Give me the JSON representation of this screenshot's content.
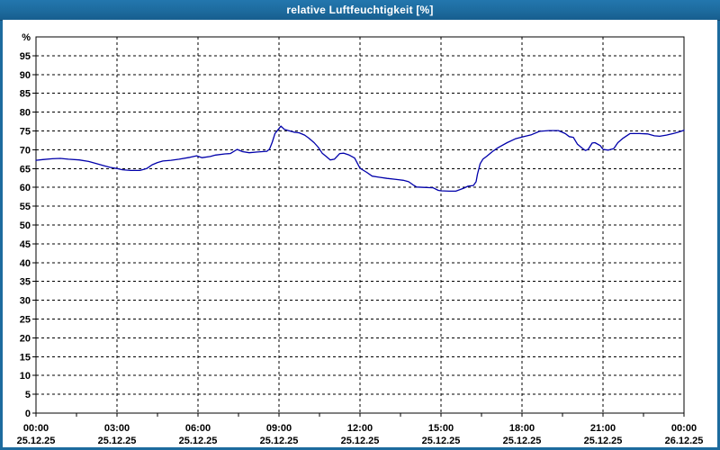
{
  "window": {
    "title": "relative Luftfeuchtigkeit [%]"
  },
  "colors": {
    "titlebar": "#1d6b9e",
    "window_border": "#1d6b9e",
    "line": "#0000aa",
    "grid": "#000000",
    "axis": "#000000",
    "background": "#ffffff",
    "title_text": "#ffffff",
    "label_text": "#000000"
  },
  "chart_data": {
    "type": "line",
    "title": "relative Luftfeuchtigkeit [%]",
    "ylabel": "%",
    "y_unit_label": "%",
    "ylim": [
      0,
      100
    ],
    "y_ticks": [
      0,
      5,
      10,
      15,
      20,
      25,
      30,
      35,
      40,
      45,
      50,
      55,
      60,
      65,
      70,
      75,
      80,
      85,
      90,
      95
    ],
    "xlim_hours": [
      0,
      24
    ],
    "x_major_step_hours": 3,
    "x_minor_step_hours": 1.5,
    "x_ticks": [
      {
        "time": "00:00",
        "date": "25.12.25",
        "hour": 0
      },
      {
        "time": "03:00",
        "date": "25.12.25",
        "hour": 3
      },
      {
        "time": "06:00",
        "date": "25.12.25",
        "hour": 6
      },
      {
        "time": "09:00",
        "date": "25.12.25",
        "hour": 9
      },
      {
        "time": "12:00",
        "date": "25.12.25",
        "hour": 12
      },
      {
        "time": "15:00",
        "date": "25.12.25",
        "hour": 15
      },
      {
        "time": "18:00",
        "date": "25.12.25",
        "hour": 18
      },
      {
        "time": "21:00",
        "date": "25.12.25",
        "hour": 21
      },
      {
        "time": "00:00",
        "date": "26.12.25",
        "hour": 24
      }
    ],
    "grid": "dashed",
    "legend": "none",
    "series": [
      {
        "name": "relative Luftfeuchtigkeit",
        "color": "#0000aa",
        "points": [
          [
            0.0,
            67.2
          ],
          [
            0.25,
            67.4
          ],
          [
            0.6,
            67.6
          ],
          [
            0.9,
            67.7
          ],
          [
            1.2,
            67.5
          ],
          [
            1.6,
            67.3
          ],
          [
            1.95,
            66.9
          ],
          [
            2.25,
            66.3
          ],
          [
            2.5,
            65.8
          ],
          [
            2.75,
            65.3
          ],
          [
            3.0,
            65.0
          ],
          [
            3.2,
            64.7
          ],
          [
            3.5,
            64.5
          ],
          [
            3.85,
            64.5
          ],
          [
            4.0,
            64.8
          ],
          [
            4.1,
            65.0
          ],
          [
            4.3,
            66.0
          ],
          [
            4.5,
            66.6
          ],
          [
            4.7,
            67.0
          ],
          [
            5.0,
            67.2
          ],
          [
            5.3,
            67.5
          ],
          [
            5.7,
            68.0
          ],
          [
            5.95,
            68.4
          ],
          [
            6.15,
            67.9
          ],
          [
            6.45,
            68.2
          ],
          [
            6.65,
            68.6
          ],
          [
            7.0,
            68.9
          ],
          [
            7.2,
            69.0
          ],
          [
            7.45,
            70.1
          ],
          [
            7.65,
            69.5
          ],
          [
            7.9,
            69.2
          ],
          [
            8.2,
            69.4
          ],
          [
            8.55,
            69.6
          ],
          [
            8.65,
            70.2
          ],
          [
            8.75,
            72.0
          ],
          [
            8.85,
            74.3
          ],
          [
            8.95,
            75.2
          ],
          [
            9.07,
            76.3
          ],
          [
            9.2,
            75.4
          ],
          [
            9.35,
            75.1
          ],
          [
            9.55,
            74.7
          ],
          [
            9.75,
            74.5
          ],
          [
            9.95,
            73.9
          ],
          [
            10.1,
            73.1
          ],
          [
            10.3,
            71.9
          ],
          [
            10.45,
            70.7
          ],
          [
            10.6,
            69.1
          ],
          [
            10.75,
            68.2
          ],
          [
            10.9,
            67.3
          ],
          [
            11.05,
            67.5
          ],
          [
            11.25,
            69.0
          ],
          [
            11.4,
            69.1
          ],
          [
            11.6,
            68.6
          ],
          [
            11.8,
            67.8
          ],
          [
            12.0,
            65.1
          ],
          [
            12.25,
            64.0
          ],
          [
            12.45,
            63.0
          ],
          [
            12.7,
            62.7
          ],
          [
            13.0,
            62.4
          ],
          [
            13.35,
            62.1
          ],
          [
            13.6,
            61.9
          ],
          [
            13.8,
            61.5
          ],
          [
            14.0,
            60.5
          ],
          [
            14.1,
            60.1
          ],
          [
            14.35,
            60.0
          ],
          [
            14.7,
            59.9
          ],
          [
            14.9,
            59.2
          ],
          [
            15.0,
            59.1
          ],
          [
            15.3,
            59.0
          ],
          [
            15.55,
            59.0
          ],
          [
            15.85,
            59.8
          ],
          [
            16.0,
            60.3
          ],
          [
            16.2,
            60.5
          ],
          [
            16.3,
            61.5
          ],
          [
            16.35,
            63.5
          ],
          [
            16.45,
            66.3
          ],
          [
            16.55,
            67.5
          ],
          [
            16.7,
            68.3
          ],
          [
            16.9,
            69.5
          ],
          [
            17.1,
            70.5
          ],
          [
            17.45,
            71.9
          ],
          [
            17.75,
            72.9
          ],
          [
            18.0,
            73.4
          ],
          [
            18.35,
            74.0
          ],
          [
            18.65,
            74.9
          ],
          [
            19.0,
            75.1
          ],
          [
            19.35,
            75.1
          ],
          [
            19.6,
            74.3
          ],
          [
            19.75,
            73.5
          ],
          [
            19.9,
            73.3
          ],
          [
            20.05,
            71.5
          ],
          [
            20.25,
            70.3
          ],
          [
            20.35,
            69.8
          ],
          [
            20.45,
            70.1
          ],
          [
            20.6,
            71.8
          ],
          [
            20.7,
            71.9
          ],
          [
            20.9,
            71.1
          ],
          [
            21.0,
            70.1
          ],
          [
            21.2,
            69.9
          ],
          [
            21.4,
            70.3
          ],
          [
            21.55,
            71.9
          ],
          [
            21.75,
            73.1
          ],
          [
            22.0,
            74.3
          ],
          [
            22.35,
            74.3
          ],
          [
            22.65,
            74.2
          ],
          [
            22.9,
            73.7
          ],
          [
            23.1,
            73.6
          ],
          [
            23.35,
            73.9
          ],
          [
            23.6,
            74.3
          ],
          [
            23.8,
            74.7
          ],
          [
            24.0,
            75.2
          ]
        ]
      }
    ]
  }
}
